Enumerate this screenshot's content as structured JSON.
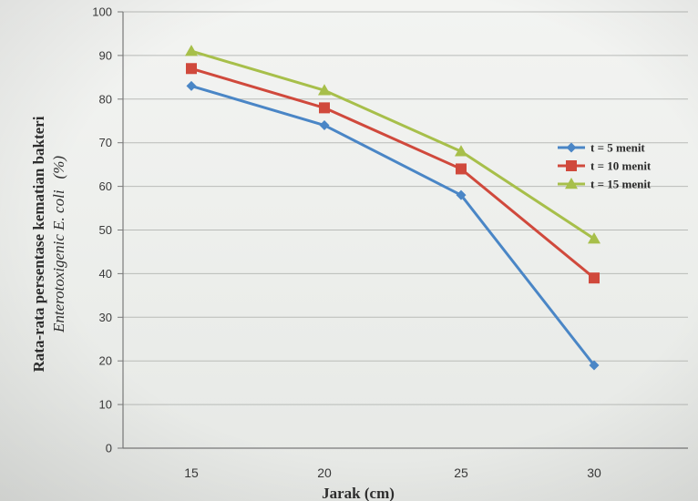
{
  "chart_data": {
    "type": "line",
    "categories": [
      "15",
      "20",
      "25",
      "30"
    ],
    "x": [
      15,
      20,
      25,
      30
    ],
    "series": [
      {
        "name": "t = 5 menit",
        "values": [
          83,
          74,
          58,
          19
        ],
        "color": "#4a86c6",
        "marker": "diamond"
      },
      {
        "name": "t = 10 menit",
        "values": [
          87,
          78,
          64,
          39
        ],
        "color": "#d0493c",
        "marker": "square"
      },
      {
        "name": "t = 15 menit",
        "values": [
          91,
          82,
          68,
          48
        ],
        "color": "#a7bf4a",
        "marker": "triangle"
      }
    ],
    "xlabel": "Jarak (cm)",
    "ylabel_line1": "Rata-rata persentase kematian bakteri",
    "ylabel_line2_italic": "Enterotoxigenic E. coli",
    "ylabel_line2_unit": "(%)",
    "ylim": [
      0,
      100
    ],
    "yticks": [
      "0",
      "10",
      "20",
      "30",
      "40",
      "50",
      "60",
      "70",
      "80",
      "90",
      "100"
    ],
    "grid": true,
    "legend_position": "right"
  }
}
